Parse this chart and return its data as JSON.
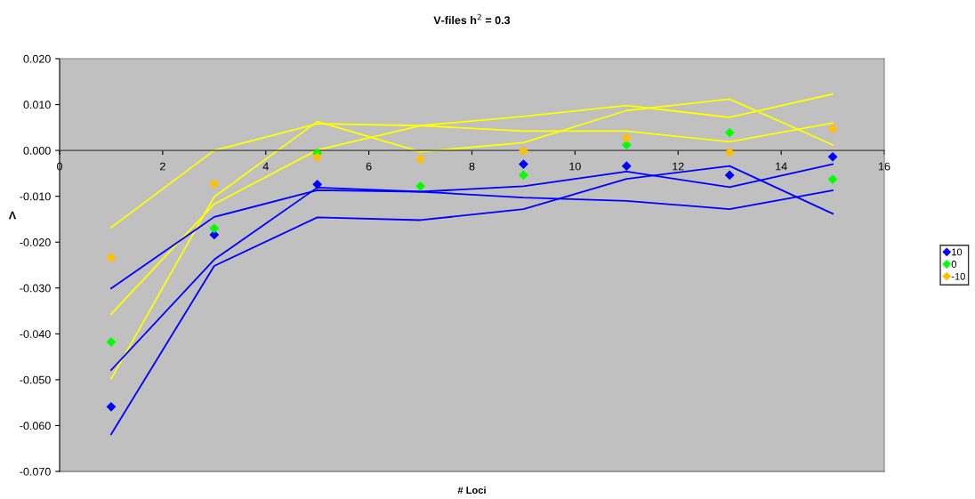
{
  "chart_data": {
    "type": "scatter",
    "title": "V-files h$^{2}$ = 0.3",
    "xlabel": "# Loci",
    "ylabel": "Λ",
    "x": [
      1,
      3,
      5,
      7,
      9,
      11,
      13,
      15
    ],
    "xlim": [
      0,
      16
    ],
    "xticks": [
      0,
      2,
      4,
      6,
      8,
      10,
      12,
      14,
      16
    ],
    "ylim": [
      -0.07,
      0.02
    ],
    "yticks": [
      {
        "value": -0.07,
        "label": "-0.070"
      },
      {
        "value": -0.06,
        "label": "-0.060"
      },
      {
        "value": -0.05,
        "label": "-0.050"
      },
      {
        "value": -0.04,
        "label": "-0.040"
      },
      {
        "value": -0.03,
        "label": "-0.030"
      },
      {
        "value": -0.02,
        "label": "-0.020"
      },
      {
        "value": -0.01,
        "label": "-0.010"
      },
      {
        "value": 0,
        "label": "0.000"
      },
      {
        "value": 0.01,
        "label": "0.010"
      },
      {
        "value": 0.02,
        "label": "0.020"
      }
    ],
    "grid": false,
    "legend": "right",
    "series": [
      {
        "type": "line",
        "marker": "none",
        "color": "#ffff00",
        "values": [
          -0.0168,
          0.0,
          0.0058,
          0.0054,
          0.0042,
          0.0042,
          0.0019,
          0.006
        ]
      },
      {
        "type": "line",
        "marker": "none",
        "color": "#ffff00",
        "values": [
          -0.0498,
          -0.0101,
          0.0063,
          -0.0003,
          0.0017,
          0.0087,
          0.0112,
          0.0012
        ]
      },
      {
        "type": "line",
        "marker": "none",
        "color": "#ffff00",
        "values": [
          -0.0357,
          -0.0117,
          0.0001,
          0.0054,
          0.0074,
          0.0098,
          0.0072,
          0.0123
        ]
      },
      {
        "type": "line",
        "marker": "none",
        "color": "#0000ff",
        "values": [
          -0.0301,
          -0.0145,
          -0.0087,
          -0.009,
          -0.0103,
          -0.011,
          -0.0128,
          -0.0087
        ]
      },
      {
        "type": "line",
        "marker": "none",
        "color": "#0000ff",
        "values": [
          -0.0619,
          -0.0252,
          -0.0146,
          -0.0152,
          -0.0128,
          -0.0062,
          -0.0034,
          -0.0138
        ]
      },
      {
        "type": "line",
        "marker": "none",
        "color": "#0000ff",
        "values": [
          -0.0479,
          -0.0238,
          -0.0081,
          -0.009,
          -0.0078,
          -0.0046,
          -0.008,
          -0.003
        ]
      },
      {
        "marker": "diamond",
        "name": "10",
        "color": "#0000ff",
        "values": [
          -0.0559,
          -0.0184,
          -0.0074,
          null,
          -0.003,
          -0.0034,
          -0.0054,
          -0.0014
        ]
      },
      {
        "marker": "diamond",
        "name": "0",
        "color": "#00ff00",
        "values": [
          -0.0418,
          -0.017,
          -0.0006,
          -0.0078,
          -0.0054,
          0.0012,
          0.0039,
          -0.0063
        ]
      },
      {
        "marker": "diamond",
        "name": "-10",
        "color": "#ffc000",
        "values": [
          -0.0234,
          -0.0073,
          -0.0015,
          -0.0019,
          -0.0001,
          0.0027,
          -0.0004,
          0.0047
        ]
      }
    ]
  }
}
